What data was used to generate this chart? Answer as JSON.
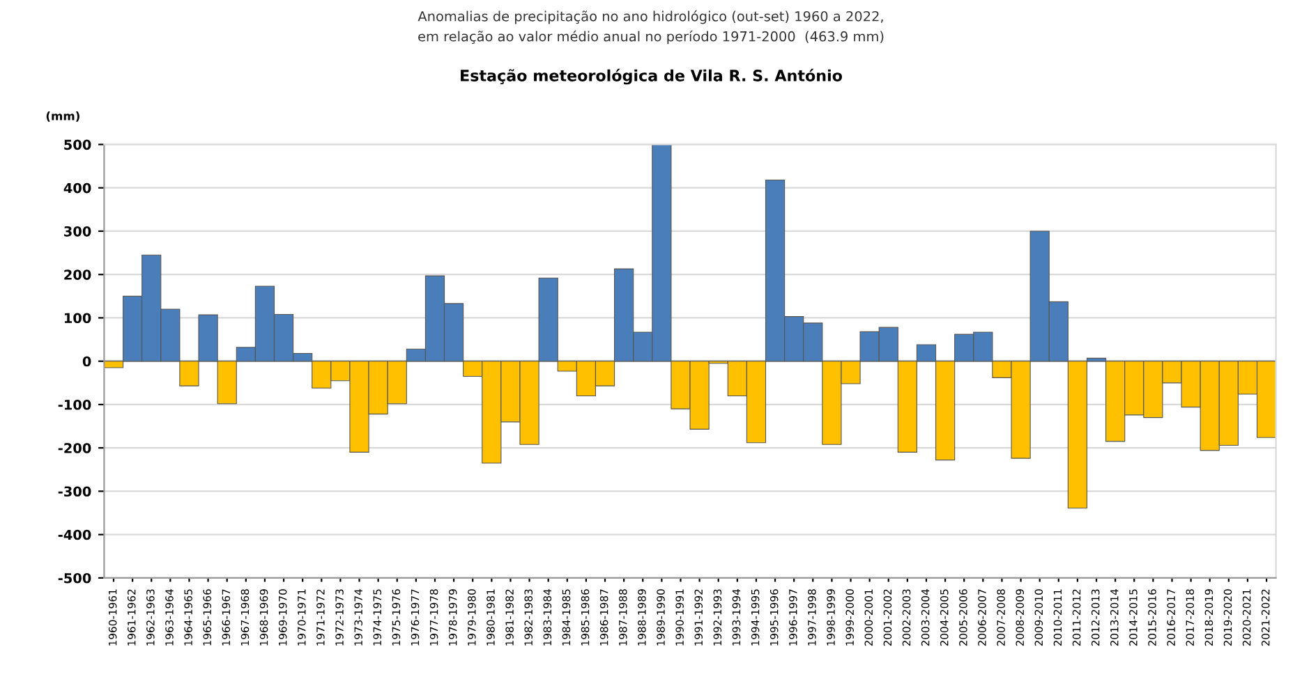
{
  "chart_data": {
    "type": "bar",
    "title": "Anomalias de precipitação no ano hidrológico (out-set) 1960 a 2022,\nem relação ao valor médio anual no período 1971-2000  (463.9 mm)",
    "subtitle": "Estação meteorológica de Vila R. S. António",
    "ylabel": "(mm)",
    "categories": [
      "1960-1961",
      "1961-1962",
      "1962-1963",
      "1963-1964",
      "1964-1965",
      "1965-1966",
      "1966-1967",
      "1967-1968",
      "1968-1969",
      "1969-1970",
      "1970-1971",
      "1971-1972",
      "1972-1973",
      "1973-1974",
      "1974-1975",
      "1975-1976",
      "1976-1977",
      "1977-1978",
      "1978-1979",
      "1979-1980",
      "1980-1981",
      "1981-1982",
      "1982-1983",
      "1983-1984",
      "1984-1985",
      "1985-1986",
      "1986-1987",
      "1987-1988",
      "1988-1989",
      "1989-1990",
      "1990-1991",
      "1991-1992",
      "1992-1993",
      "1993-1994",
      "1994-1995",
      "1995-1996",
      "1996-1997",
      "1997-1998",
      "1998-1999",
      "1999-2000",
      "2000-2001",
      "2001-2002",
      "2002-2003",
      "2003-2004",
      "2004-2005",
      "2005-2006",
      "2006-2007",
      "2007-2008",
      "2008-2009",
      "2009-2010",
      "2010-2011",
      "2011-2012",
      "2012-2013",
      "2013-2014",
      "2014-2015",
      "2015-2016",
      "2016-2017",
      "2017-2018",
      "2018-2019",
      "2019-2020",
      "2020-2021",
      "2021-2022"
    ],
    "values": [
      -15,
      150,
      245,
      120,
      -57,
      107,
      -98,
      32,
      173,
      108,
      18,
      -62,
      -45,
      -210,
      -122,
      -98,
      28,
      197,
      133,
      -35,
      -235,
      -140,
      -192,
      192,
      -23,
      -80,
      -57,
      213,
      67,
      500,
      -110,
      -157,
      -5,
      -80,
      -188,
      418,
      103,
      88,
      -192,
      -52,
      68,
      78,
      -210,
      38,
      -228,
      62,
      67,
      -38,
      -224,
      300,
      137,
      -339,
      7,
      -185,
      -124,
      -130,
      -50,
      -106,
      -206,
      -194,
      -76,
      -176
    ],
    "colors": [
      "#ffc000",
      "#4a7ebb",
      "#4a7ebb",
      "#4a7ebb",
      "#ffc000",
      "#4a7ebb",
      "#ffc000",
      "#4a7ebb",
      "#4a7ebb",
      "#4a7ebb",
      "#4a7ebb",
      "#ffc000",
      "#ffc000",
      "#ffc000",
      "#ffc000",
      "#ffc000",
      "#4a7ebb",
      "#4a7ebb",
      "#4a7ebb",
      "#ffc000",
      "#ffc000",
      "#ffc000",
      "#ffc000",
      "#4a7ebb",
      "#ffc000",
      "#ffc000",
      "#ffc000",
      "#4a7ebb",
      "#4a7ebb",
      "#4a7ebb",
      "#ffc000",
      "#ffc000",
      "#ffc000",
      "#ffc000",
      "#ffc000",
      "#4a7ebb",
      "#4a7ebb",
      "#4a7ebb",
      "#ffc000",
      "#ffc000",
      "#4a7ebb",
      "#4a7ebb",
      "#ffc000",
      "#4a7ebb",
      "#ffc000",
      "#4a7ebb",
      "#4a7ebb",
      "#ffc000",
      "#ffc000",
      "#4a7ebb",
      "#4a7ebb",
      "#ffc000",
      "#4a7ebb",
      "#ffc000",
      "#ffc000",
      "#ffc000",
      "#ffc000",
      "#ffc000",
      "#ffc000",
      "#ffc000",
      "#ffc000",
      "#ffc000"
    ],
    "ylim": [
      -500,
      500
    ],
    "yticks": [
      -500,
      -400,
      -300,
      -200,
      -100,
      0,
      100,
      200,
      300,
      400,
      500
    ],
    "grid": "y",
    "legend": false
  }
}
